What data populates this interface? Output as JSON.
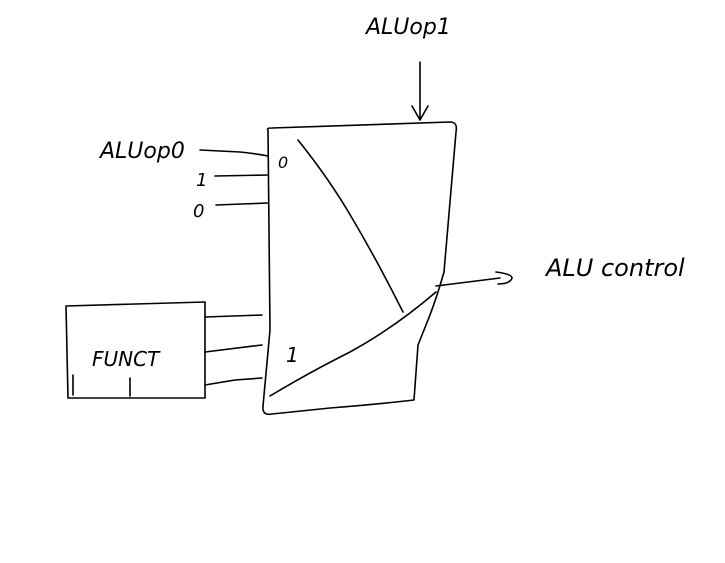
{
  "labels": {
    "aluop1": "ALUop1",
    "aluop0": "ALUop0",
    "input_one": "1",
    "input_zero": "0",
    "funct": "FUNCT",
    "alu_control": "ALU control",
    "mux_top_select": "0",
    "mux_bottom_select": "1"
  }
}
